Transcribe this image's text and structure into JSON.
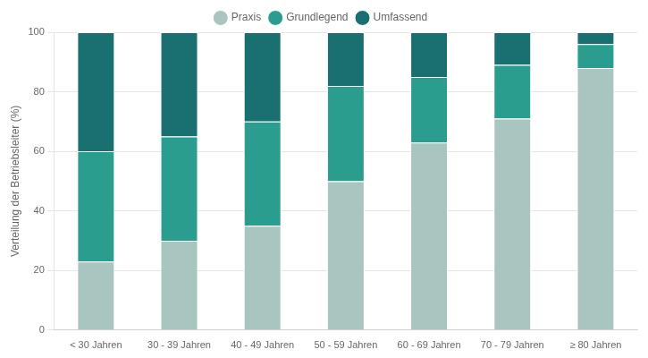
{
  "chart_data": {
    "type": "bar",
    "stacked": true,
    "categories": [
      "< 30 Jahren",
      "30 - 39 Jahren",
      "40 - 49 Jahren",
      "50 - 59 Jahren",
      "60 - 69 Jahren",
      "70 - 79 Jahren",
      "≥ 80 Jahren"
    ],
    "series": [
      {
        "name": "Praxis",
        "color": "#a8c5c0",
        "values": [
          23,
          30,
          35,
          50,
          63,
          71,
          88
        ]
      },
      {
        "name": "Grundlegend",
        "color": "#2a9d8f",
        "values": [
          37,
          35,
          35,
          32,
          22,
          18,
          8
        ]
      },
      {
        "name": "Umfassend",
        "color": "#1a7070",
        "values": [
          40,
          35,
          30,
          18,
          15,
          11,
          4
        ]
      }
    ],
    "ylabel": "Verteilung der Betriebsleiter (%)",
    "ylim": [
      0,
      100
    ],
    "yticks": [
      0,
      20,
      40,
      60,
      80,
      100
    ],
    "grid": true,
    "legend": "top"
  }
}
